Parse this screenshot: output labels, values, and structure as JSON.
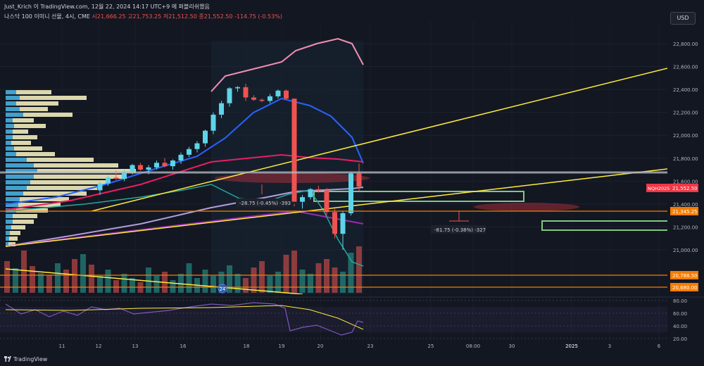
{
  "header": {
    "publisher_line": "Just_Krich 이 TradingView.com, 12월 22, 2024 14:17 UTC+9 에 퍼블리쉬했음",
    "symbol_line": "나스닥 100 이미니 선물, 4시, CME",
    "ohlc": "시21,666.25  고21,753.25  저21,512.50  종21,552.50  -114.75 (-0.53%)",
    "currency_button": "USD"
  },
  "footer": {
    "brand": "TradingView"
  },
  "chart_data": {
    "type": "candlestick",
    "title": "",
    "xlabel": "",
    "ylabel": "",
    "y_axis": {
      "ticks": [
        21000,
        21200,
        21400,
        21600,
        21800,
        22000,
        22200,
        22400,
        22600,
        22800
      ],
      "tick_labels": [
        "21,000.00",
        "21,200.00",
        "21,400.00",
        "21,600.00",
        "21,800.00",
        "22,000.00",
        "22,200.00",
        "22,400.00",
        "22,600.00",
        "22,800.00"
      ]
    },
    "x_axis": {
      "tick_labels": [
        "11",
        "12",
        "13",
        "16",
        "18",
        "19",
        "20",
        "23",
        "25",
        "08:00",
        "30",
        "2025",
        "3",
        "6"
      ]
    },
    "ohlc_candles": [
      [
        21520,
        21600,
        21480,
        21580
      ],
      [
        21580,
        21650,
        21560,
        21630
      ],
      [
        21630,
        21690,
        21610,
        21620
      ],
      [
        21620,
        21700,
        21600,
        21680
      ],
      [
        21680,
        21750,
        21660,
        21740
      ],
      [
        21740,
        21760,
        21690,
        21700
      ],
      [
        21700,
        21740,
        21660,
        21720
      ],
      [
        21720,
        21780,
        21700,
        21760
      ],
      [
        21760,
        21800,
        21720,
        21730
      ],
      [
        21730,
        21790,
        21700,
        21780
      ],
      [
        21780,
        21850,
        21750,
        21830
      ],
      [
        21830,
        21900,
        21810,
        21880
      ],
      [
        21880,
        21950,
        21850,
        21930
      ],
      [
        21930,
        22050,
        21900,
        22040
      ],
      [
        22040,
        22200,
        22010,
        22180
      ],
      [
        22180,
        22300,
        22150,
        22280
      ],
      [
        22280,
        22420,
        22250,
        22410
      ],
      [
        22410,
        22430,
        22380,
        22420
      ],
      [
        22420,
        22450,
        22300,
        22330
      ],
      [
        22330,
        22350,
        22300,
        22310
      ],
      [
        22310,
        22320,
        22290,
        22300
      ],
      [
        22300,
        22360,
        22280,
        22340
      ],
      [
        22340,
        22400,
        22320,
        22390
      ],
      [
        22390,
        22400,
        22310,
        22320
      ],
      [
        22320,
        21400,
        21380,
        21420
      ],
      [
        21420,
        21480,
        21360,
        21460
      ],
      [
        21460,
        21540,
        21440,
        21530
      ],
      [
        21530,
        21560,
        21500,
        21520
      ],
      [
        21520,
        21540,
        21300,
        21330
      ],
      [
        21330,
        21360,
        21100,
        21140
      ],
      [
        21140,
        21340,
        21000,
        21320
      ],
      [
        21320,
        21680,
        21300,
        21666
      ],
      [
        21666,
        21753,
        21512,
        21552
      ]
    ],
    "horizontal_levels": [
      {
        "value": 21345.25,
        "label": "21,345.25",
        "color": "#f57c00"
      },
      {
        "value": 20788.5,
        "label": "20,788.50",
        "color": "#f57c00"
      },
      {
        "value": 20680.0,
        "label": "20,680.00",
        "color": "#f57c00"
      },
      {
        "value": 21670.0,
        "label": "",
        "color": "#b2b5be"
      }
    ],
    "price_tags": [
      {
        "label": "NQH2025",
        "value": 21552.5,
        "color": "#f23645"
      },
      {
        "label": "21,552.50",
        "value": 21552.5,
        "color": "#f23645"
      }
    ],
    "annotations": [
      {
        "text": "-28.75 (-0.45%) -393"
      },
      {
        "text": "-81.75 (-0.38%) -327"
      }
    ],
    "event_marker": "24",
    "rsi_panel": {
      "tick_labels": [
        "80.00",
        "60.00",
        "40.00",
        "20.00"
      ],
      "levels": [
        80,
        60,
        40,
        20
      ]
    },
    "volume": [
      8,
      11,
      6,
      9,
      7,
      5,
      12,
      8,
      10,
      6,
      9,
      14,
      7,
      11,
      8,
      10,
      13,
      9,
      7,
      12,
      15,
      8,
      10,
      18,
      20,
      11,
      9,
      14,
      16,
      12,
      10,
      19,
      22
    ]
  },
  "colors": {
    "up": "#26a69a",
    "up_body": "#5dd4e8",
    "down": "#ef5350",
    "background": "#131722",
    "grid": "#1e2230"
  }
}
